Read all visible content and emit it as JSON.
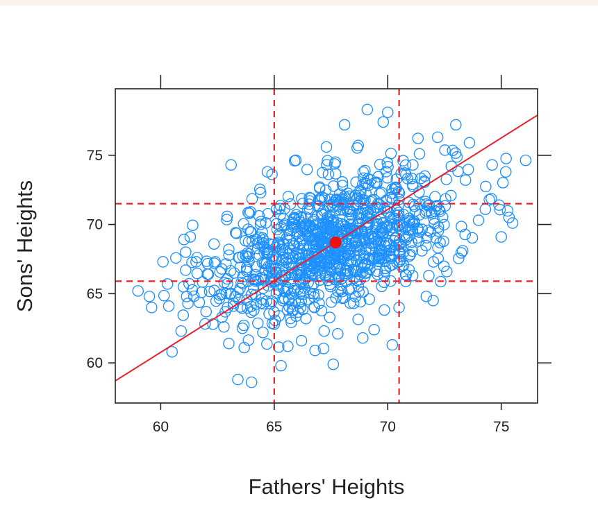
{
  "chart_data": {
    "type": "scatter",
    "title": "",
    "xlabel": "Fathers' Heights",
    "ylabel": "Sons' Heights",
    "xlim": [
      58,
      76.6
    ],
    "ylim": [
      57.1,
      79.8
    ],
    "xticks": [
      60,
      65,
      70,
      75
    ],
    "yticks": [
      60,
      65,
      70,
      75
    ],
    "grid": false,
    "colors": {
      "points": "#1e90ff",
      "mean": "#ee1111",
      "reference": "#e8202a"
    },
    "series": [
      {
        "type": "scatter",
        "point_count": 1078,
        "mean_point": {
          "x": 67.7,
          "y": 68.7
        },
        "points": [
          [
            59.0,
            65.2
          ],
          [
            59.5,
            64.8
          ],
          [
            59.6,
            64.0
          ],
          [
            60.1,
            67.3
          ],
          [
            60.3,
            65.7
          ],
          [
            60.5,
            60.8
          ],
          [
            60.9,
            62.3
          ],
          [
            61.0,
            65.5
          ],
          [
            61.1,
            66.7
          ],
          [
            61.2,
            64.3
          ],
          [
            61.1,
            68.0
          ],
          [
            61.3,
            69.1
          ],
          [
            61.6,
            67.6
          ],
          [
            61.8,
            65.1
          ],
          [
            62.0,
            63.7
          ],
          [
            62.1,
            66.4
          ],
          [
            62.3,
            62.8
          ],
          [
            62.4,
            67.3
          ],
          [
            62.6,
            64.9
          ],
          [
            62.7,
            63.3
          ],
          [
            62.8,
            65.8
          ],
          [
            63.0,
            61.4
          ],
          [
            63.0,
            68.2
          ],
          [
            63.1,
            74.3
          ],
          [
            63.2,
            64.1
          ],
          [
            63.3,
            69.4
          ],
          [
            63.4,
            58.8
          ],
          [
            63.5,
            66.9
          ],
          [
            63.6,
            62.5
          ],
          [
            63.8,
            67.7
          ],
          [
            63.9,
            70.8
          ],
          [
            64.0,
            58.6
          ],
          [
            64.1,
            63.8
          ],
          [
            64.2,
            65.9
          ],
          [
            64.4,
            72.3
          ],
          [
            64.5,
            62.2
          ],
          [
            64.6,
            66.7
          ],
          [
            64.7,
            73.8
          ],
          [
            64.8,
            68.6
          ],
          [
            65.0,
            62.8
          ],
          [
            65.1,
            71.1
          ],
          [
            65.3,
            59.8
          ],
          [
            65.4,
            65.4
          ],
          [
            65.6,
            61.2
          ],
          [
            65.9,
            74.6
          ],
          [
            66.0,
            66.4
          ],
          [
            66.2,
            61.6
          ],
          [
            66.4,
            63.2
          ],
          [
            66.6,
            69.9
          ],
          [
            66.8,
            60.9
          ],
          [
            67.0,
            72.7
          ],
          [
            67.2,
            62.3
          ],
          [
            67.3,
            75.6
          ],
          [
            67.6,
            59.9
          ],
          [
            67.8,
            62.1
          ],
          [
            68.1,
            77.2
          ],
          [
            68.5,
            64.3
          ],
          [
            68.7,
            75.7
          ],
          [
            68.9,
            61.8
          ],
          [
            69.1,
            78.3
          ],
          [
            69.4,
            62.4
          ],
          [
            69.8,
            77.4
          ],
          [
            70.0,
            78.1
          ],
          [
            70.2,
            61.3
          ],
          [
            70.5,
            64.0
          ],
          [
            70.8,
            73.6
          ],
          [
            71.1,
            66.3
          ],
          [
            71.4,
            75.1
          ],
          [
            71.7,
            64.8
          ],
          [
            72.0,
            64.5
          ],
          [
            72.2,
            76.3
          ],
          [
            72.6,
            66.6
          ],
          [
            72.8,
            74.2
          ],
          [
            73.0,
            77.2
          ],
          [
            73.3,
            68.1
          ],
          [
            73.6,
            75.9
          ],
          [
            74.0,
            70.3
          ],
          [
            74.3,
            71.1
          ],
          [
            74.6,
            74.3
          ],
          [
            74.9,
            71.4
          ],
          [
            75.0,
            69.1
          ],
          [
            75.2,
            73.8
          ],
          [
            75.5,
            70.1
          ]
        ]
      },
      {
        "type": "line",
        "x": [
          58,
          76.6
        ],
        "y": [
          58.7,
          77.9
        ]
      }
    ],
    "reference_lines": {
      "vertical": [
        65.0,
        70.5
      ],
      "horizontal": [
        65.9,
        71.5
      ]
    }
  }
}
